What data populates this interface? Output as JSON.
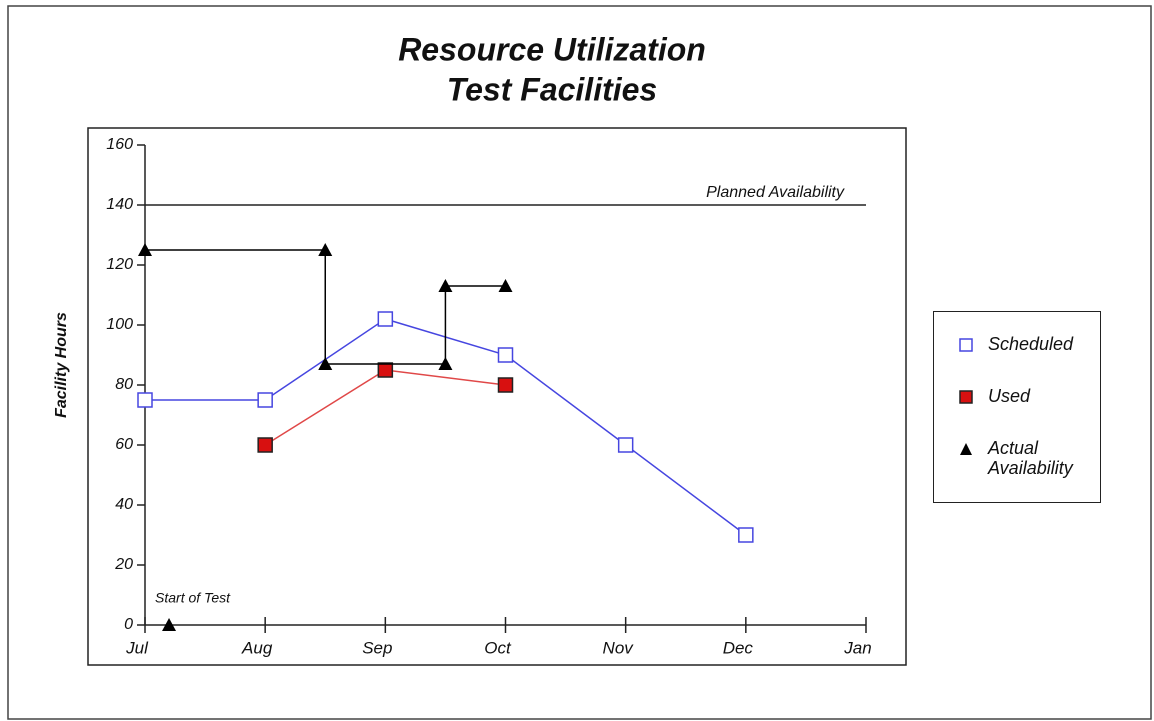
{
  "chart_data": {
    "type": "line",
    "title": "Resource Utilization",
    "subtitle": "Test Facilities",
    "y_label": "Facility Hours",
    "xlim": [
      0,
      6
    ],
    "xticks": [
      {
        "value": 0,
        "label": "Jul"
      },
      {
        "value": 1,
        "label": "Aug"
      },
      {
        "value": 2,
        "label": "Sep"
      },
      {
        "value": 3,
        "label": "Oct"
      },
      {
        "value": 4,
        "label": "Nov"
      },
      {
        "value": 5,
        "label": "Dec"
      },
      {
        "value": 6,
        "label": "Jan"
      }
    ],
    "ylim": [
      0,
      160
    ],
    "yticks": [
      0,
      20,
      40,
      60,
      80,
      100,
      120,
      140,
      160
    ],
    "series": [
      {
        "name": "Scheduled",
        "color": "#4646e0",
        "marker": "open-square",
        "x": [
          0,
          1,
          2,
          3,
          4,
          5
        ],
        "values": [
          75,
          75,
          102,
          90,
          60,
          30
        ]
      },
      {
        "name": "Used",
        "color": "#e04848",
        "marker": "filled-square",
        "x": [
          1,
          2,
          3
        ],
        "values": [
          60,
          85,
          80
        ]
      },
      {
        "name": "Actual Availability",
        "color": "#000000",
        "marker": "triangle",
        "x": [
          0,
          1.5,
          1.5,
          2.5,
          2.5,
          3
        ],
        "values": [
          125,
          125,
          87,
          87,
          113,
          113
        ]
      }
    ],
    "reference_lines": [
      {
        "label": "Planned Availability",
        "value": 140
      }
    ],
    "annotations": [
      {
        "text": "Start of Test",
        "x": 0.2,
        "y": 0
      }
    ]
  }
}
